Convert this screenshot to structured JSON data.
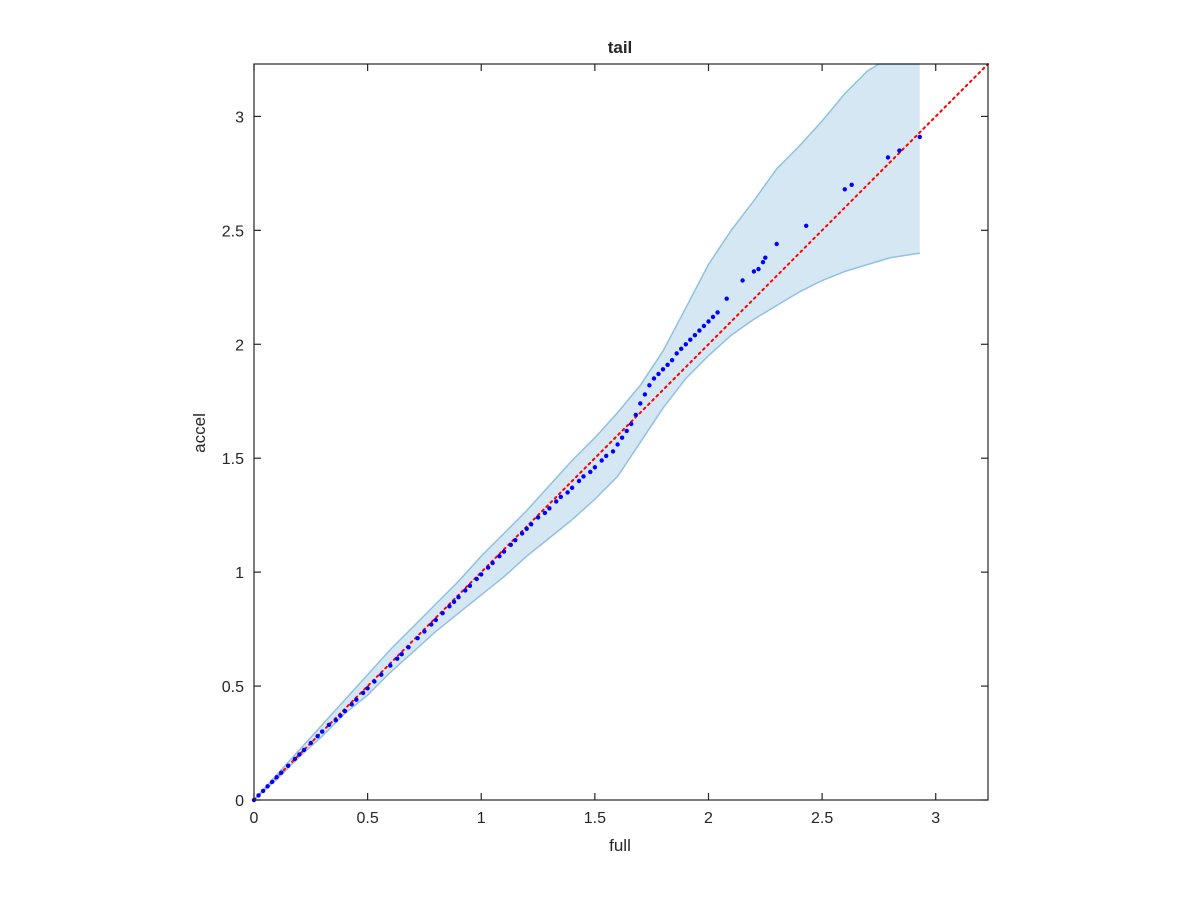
{
  "chart_data": {
    "type": "scatter",
    "title": "tail",
    "xlabel": "full",
    "ylabel": "accel",
    "xlim": [
      0,
      3.23
    ],
    "ylim": [
      0,
      3.23
    ],
    "x_ticks": [
      0,
      0.5,
      1,
      1.5,
      2,
      2.5,
      3
    ],
    "y_ticks": [
      0,
      0.5,
      1,
      1.5,
      2,
      2.5,
      3
    ],
    "x_tick_labels": [
      "0",
      "0.5",
      "1",
      "1.5",
      "2",
      "2.5",
      "3"
    ],
    "y_tick_labels": [
      "0",
      "0.5",
      "1",
      "1.5",
      "2",
      "2.5",
      "3"
    ],
    "grid": false,
    "colors": {
      "points": "#0000ff",
      "reference_line": "#ff0000",
      "band_fill": "#d6e7f4",
      "band_edge": "#8fc1e1",
      "axes": "#262626"
    },
    "reference_line": {
      "style": "dotted",
      "from": [
        0,
        0
      ],
      "to": [
        3.23,
        3.23
      ]
    },
    "confidence_band": {
      "upper": [
        [
          0,
          0
        ],
        [
          0.1,
          0.11
        ],
        [
          0.2,
          0.22
        ],
        [
          0.3,
          0.33
        ],
        [
          0.4,
          0.44
        ],
        [
          0.5,
          0.55
        ],
        [
          0.6,
          0.66
        ],
        [
          0.7,
          0.76
        ],
        [
          0.8,
          0.86
        ],
        [
          0.9,
          0.96
        ],
        [
          1.0,
          1.07
        ],
        [
          1.1,
          1.17
        ],
        [
          1.2,
          1.27
        ],
        [
          1.3,
          1.38
        ],
        [
          1.4,
          1.49
        ],
        [
          1.5,
          1.59
        ],
        [
          1.6,
          1.7
        ],
        [
          1.7,
          1.82
        ],
        [
          1.8,
          1.97
        ],
        [
          1.9,
          2.16
        ],
        [
          2.0,
          2.35
        ],
        [
          2.1,
          2.5
        ],
        [
          2.2,
          2.63
        ],
        [
          2.3,
          2.77
        ],
        [
          2.4,
          2.87
        ],
        [
          2.5,
          2.98
        ],
        [
          2.6,
          3.1
        ],
        [
          2.7,
          3.2
        ],
        [
          2.75,
          3.23
        ],
        [
          2.93,
          3.23
        ]
      ],
      "lower": [
        [
          0,
          0
        ],
        [
          0.1,
          0.09
        ],
        [
          0.2,
          0.19
        ],
        [
          0.3,
          0.28
        ],
        [
          0.4,
          0.38
        ],
        [
          0.5,
          0.46
        ],
        [
          0.6,
          0.56
        ],
        [
          0.7,
          0.65
        ],
        [
          0.8,
          0.74
        ],
        [
          0.9,
          0.82
        ],
        [
          1.0,
          0.9
        ],
        [
          1.1,
          0.98
        ],
        [
          1.2,
          1.07
        ],
        [
          1.3,
          1.15
        ],
        [
          1.4,
          1.23
        ],
        [
          1.5,
          1.32
        ],
        [
          1.6,
          1.42
        ],
        [
          1.7,
          1.57
        ],
        [
          1.8,
          1.72
        ],
        [
          1.9,
          1.85
        ],
        [
          2.0,
          1.95
        ],
        [
          2.1,
          2.04
        ],
        [
          2.2,
          2.11
        ],
        [
          2.3,
          2.17
        ],
        [
          2.4,
          2.23
        ],
        [
          2.5,
          2.28
        ],
        [
          2.6,
          2.32
        ],
        [
          2.7,
          2.35
        ],
        [
          2.8,
          2.38
        ],
        [
          2.93,
          2.4
        ]
      ]
    },
    "series": [
      {
        "x": [
          0,
          0.02,
          0.04,
          0.06,
          0.08,
          0.1,
          0.12,
          0.15,
          0.18,
          0.2,
          0.22,
          0.25,
          0.28,
          0.3,
          0.33,
          0.36,
          0.38,
          0.4,
          0.43,
          0.45,
          0.48,
          0.5,
          0.53,
          0.56,
          0.6,
          0.63,
          0.65,
          0.68,
          0.72,
          0.75,
          0.78,
          0.8,
          0.83,
          0.86,
          0.88,
          0.9,
          0.93,
          0.95,
          0.98,
          1.0,
          1.03,
          1.05,
          1.08,
          1.1,
          1.13,
          1.15,
          1.18,
          1.2,
          1.22,
          1.25,
          1.28,
          1.3,
          1.33,
          1.35,
          1.38,
          1.4,
          1.43,
          1.45,
          1.48,
          1.5,
          1.53,
          1.55,
          1.58,
          1.6,
          1.62,
          1.64,
          1.66,
          1.68,
          1.7,
          1.72,
          1.74,
          1.76,
          1.78,
          1.8,
          1.82,
          1.84,
          1.86,
          1.88,
          1.9,
          1.92,
          1.94,
          1.96,
          1.98,
          2.0,
          2.02,
          2.04,
          2.08,
          2.15,
          2.2,
          2.22,
          2.24,
          2.25,
          2.3,
          2.43,
          2.6,
          2.63,
          2.79,
          2.84,
          2.93
        ],
        "values": [
          0,
          0.02,
          0.04,
          0.06,
          0.08,
          0.1,
          0.12,
          0.15,
          0.18,
          0.2,
          0.22,
          0.25,
          0.28,
          0.3,
          0.33,
          0.35,
          0.37,
          0.39,
          0.42,
          0.44,
          0.47,
          0.49,
          0.52,
          0.55,
          0.59,
          0.62,
          0.64,
          0.67,
          0.71,
          0.74,
          0.77,
          0.79,
          0.82,
          0.85,
          0.87,
          0.89,
          0.92,
          0.94,
          0.97,
          0.99,
          1.02,
          1.04,
          1.07,
          1.09,
          1.12,
          1.14,
          1.17,
          1.19,
          1.21,
          1.24,
          1.26,
          1.28,
          1.31,
          1.33,
          1.35,
          1.37,
          1.4,
          1.42,
          1.44,
          1.46,
          1.49,
          1.51,
          1.53,
          1.56,
          1.59,
          1.62,
          1.65,
          1.69,
          1.74,
          1.78,
          1.82,
          1.85,
          1.87,
          1.89,
          1.91,
          1.93,
          1.96,
          1.98,
          2.0,
          2.02,
          2.04,
          2.06,
          2.08,
          2.1,
          2.12,
          2.14,
          2.2,
          2.28,
          2.32,
          2.33,
          2.36,
          2.38,
          2.44,
          2.52,
          2.68,
          2.7,
          2.82,
          2.85,
          2.91
        ]
      }
    ]
  }
}
